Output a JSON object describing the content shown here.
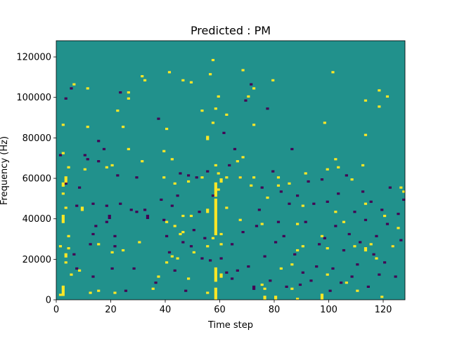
{
  "chart_data": {
    "type": "heatmap",
    "title": "Predicted : PM",
    "xlabel": "Time step",
    "ylabel": "Frequency (Hz)",
    "xlim": [
      0,
      128
    ],
    "ylim": [
      0,
      128000
    ],
    "n_time_steps": 128,
    "n_freq_bins": 128,
    "x_ticks": [
      0,
      20,
      40,
      60,
      80,
      100,
      120
    ],
    "y_ticks": [
      0,
      20000,
      40000,
      60000,
      80000,
      100000,
      120000
    ],
    "x_tick_labels": [
      "0",
      "20",
      "40",
      "60",
      "80",
      "100",
      "120"
    ],
    "y_tick_labels": [
      "0",
      "20000",
      "40000",
      "60000",
      "80000",
      "100000",
      "120000"
    ],
    "colormap": "viridis",
    "colors": {
      "background": "#21918c",
      "low": "#440154",
      "high": "#fde725"
    },
    "note_levels": "0 = dark purple, 0.5 = teal background, 1 = yellow",
    "cells_high": [
      [
        1,
        2,
        1
      ],
      [
        2,
        2,
        4
      ],
      [
        2,
        6,
        1
      ],
      [
        3,
        21,
        2
      ],
      [
        1,
        26,
        1
      ],
      [
        2,
        38,
        4
      ],
      [
        2,
        52,
        1
      ],
      [
        2,
        56,
        2
      ],
      [
        2,
        72,
        1
      ],
      [
        2,
        86,
        1
      ],
      [
        3,
        18,
        1
      ],
      [
        3,
        45,
        1
      ],
      [
        3,
        58,
        3
      ],
      [
        4,
        25,
        1
      ],
      [
        4,
        31,
        1
      ],
      [
        4,
        65,
        1
      ],
      [
        5,
        12,
        1
      ],
      [
        6,
        106,
        1
      ],
      [
        8,
        14,
        1
      ],
      [
        9,
        44,
        2
      ],
      [
        10,
        64,
        1
      ],
      [
        11,
        85,
        1
      ],
      [
        11,
        104,
        1
      ],
      [
        12,
        3,
        1
      ],
      [
        15,
        4,
        1
      ],
      [
        15,
        27,
        1
      ],
      [
        18,
        65,
        1
      ],
      [
        20,
        23,
        1
      ],
      [
        20,
        66,
        1
      ],
      [
        21,
        3,
        1
      ],
      [
        22,
        93,
        1
      ],
      [
        24,
        24,
        1
      ],
      [
        24,
        85,
        1
      ],
      [
        26,
        74,
        1
      ],
      [
        26,
        99,
        1
      ],
      [
        26,
        102,
        1
      ],
      [
        30,
        28,
        1
      ],
      [
        31,
        68,
        1
      ],
      [
        31,
        110,
        1
      ],
      [
        32,
        108,
        1
      ],
      [
        35,
        5,
        1
      ],
      [
        37,
        11,
        1
      ],
      [
        39,
        60,
        1
      ],
      [
        39,
        73,
        1
      ],
      [
        40,
        18,
        1
      ],
      [
        40,
        38,
        1
      ],
      [
        40,
        84,
        1
      ],
      [
        41,
        112,
        1
      ],
      [
        42,
        21,
        1
      ],
      [
        42,
        69,
        1
      ],
      [
        43,
        36,
        1
      ],
      [
        43,
        57,
        1
      ],
      [
        44,
        20,
        1
      ],
      [
        45,
        32,
        1
      ],
      [
        46,
        33,
        1
      ],
      [
        46,
        41,
        1
      ],
      [
        46,
        108,
        1
      ],
      [
        48,
        10,
        1
      ],
      [
        48,
        58,
        1
      ],
      [
        49,
        41,
        1
      ],
      [
        49,
        107,
        1
      ],
      [
        50,
        23,
        1
      ],
      [
        53,
        60,
        1
      ],
      [
        53,
        93,
        1
      ],
      [
        55,
        3,
        1
      ],
      [
        55,
        26,
        1
      ],
      [
        55,
        43,
        2
      ],
      [
        55,
        79,
        2
      ],
      [
        56,
        111,
        1
      ],
      [
        57,
        30,
        1
      ],
      [
        57,
        87,
        1
      ],
      [
        57,
        118,
        1
      ],
      [
        58,
        0,
        6
      ],
      [
        58,
        9,
        7
      ],
      [
        58,
        32,
        18
      ],
      [
        58,
        51,
        7
      ],
      [
        58,
        66,
        1
      ],
      [
        58,
        94,
        1
      ],
      [
        59,
        54,
        1
      ],
      [
        59,
        62,
        1
      ],
      [
        59,
        100,
        1
      ],
      [
        60,
        11,
        2
      ],
      [
        60,
        27,
        1
      ],
      [
        60,
        32,
        1
      ],
      [
        60,
        58,
        2
      ],
      [
        62,
        45,
        1
      ],
      [
        62,
        60,
        1
      ],
      [
        62,
        91,
        1
      ],
      [
        66,
        68,
        1
      ],
      [
        67,
        39,
        1
      ],
      [
        67,
        60,
        1
      ],
      [
        68,
        70,
        1
      ],
      [
        68,
        113,
        1
      ],
      [
        70,
        100,
        1
      ],
      [
        71,
        56,
        1
      ],
      [
        72,
        60,
        1
      ],
      [
        72,
        86,
        1
      ],
      [
        72,
        104,
        1
      ],
      [
        75,
        7,
        1
      ],
      [
        75,
        37,
        1
      ],
      [
        76,
        0,
        2
      ],
      [
        76,
        5,
        1
      ],
      [
        77,
        50,
        1
      ],
      [
        79,
        108,
        1
      ],
      [
        80,
        0,
        2
      ],
      [
        81,
        56,
        1
      ],
      [
        81,
        60,
        1
      ],
      [
        82,
        15,
        1
      ],
      [
        85,
        57,
        1
      ],
      [
        86,
        5,
        1
      ],
      [
        86,
        17,
        1
      ],
      [
        88,
        0,
        1
      ],
      [
        88,
        24,
        1
      ],
      [
        88,
        37,
        1
      ],
      [
        90,
        26,
        1
      ],
      [
        90,
        46,
        1
      ],
      [
        91,
        62,
        1
      ],
      [
        97,
        0,
        3
      ],
      [
        97,
        31,
        1
      ],
      [
        98,
        87,
        1
      ],
      [
        99,
        12,
        1
      ],
      [
        99,
        25,
        1
      ],
      [
        99,
        64,
        1
      ],
      [
        101,
        112,
        1
      ],
      [
        102,
        43,
        1
      ],
      [
        102,
        69,
        1
      ],
      [
        103,
        65,
        1
      ],
      [
        105,
        38,
        1
      ],
      [
        106,
        8,
        1
      ],
      [
        108,
        59,
        1
      ],
      [
        109,
        26,
        1
      ],
      [
        110,
        4,
        1
      ],
      [
        112,
        66,
        1
      ],
      [
        113,
        47,
        1
      ],
      [
        113,
        24,
        2
      ],
      [
        113,
        81,
        1
      ],
      [
        113,
        98,
        1
      ],
      [
        115,
        27,
        1
      ],
      [
        117,
        20,
        1
      ],
      [
        118,
        95,
        1
      ],
      [
        118,
        103,
        1
      ],
      [
        119,
        1,
        1
      ],
      [
        120,
        41,
        1
      ],
      [
        121,
        100,
        1
      ],
      [
        123,
        26,
        1
      ],
      [
        125,
        35,
        1
      ],
      [
        126,
        55,
        1
      ],
      [
        127,
        53,
        1
      ]
    ],
    "cells_low": [
      [
        1,
        71,
        1
      ],
      [
        3,
        57,
        2
      ],
      [
        3,
        99,
        1
      ],
      [
        5,
        104,
        1
      ],
      [
        6,
        22,
        1
      ],
      [
        7,
        15,
        1
      ],
      [
        7,
        46,
        1
      ],
      [
        8,
        55,
        1
      ],
      [
        10,
        71,
        1
      ],
      [
        11,
        69,
        1
      ],
      [
        12,
        27,
        1
      ],
      [
        13,
        32,
        1
      ],
      [
        13,
        47,
        1
      ],
      [
        13,
        11,
        1
      ],
      [
        14,
        36,
        1
      ],
      [
        15,
        78,
        1
      ],
      [
        15,
        68,
        1
      ],
      [
        17,
        74,
        1
      ],
      [
        18,
        46,
        1
      ],
      [
        18,
        38,
        1
      ],
      [
        19,
        40,
        2
      ],
      [
        20,
        15,
        1
      ],
      [
        21,
        31,
        1
      ],
      [
        21,
        26,
        1
      ],
      [
        22,
        61,
        1
      ],
      [
        23,
        47,
        1
      ],
      [
        23,
        102,
        1
      ],
      [
        25,
        4,
        1
      ],
      [
        27,
        44,
        1
      ],
      [
        28,
        15,
        1
      ],
      [
        29,
        43,
        1
      ],
      [
        29,
        60,
        1
      ],
      [
        32,
        44,
        1
      ],
      [
        33,
        40,
        2
      ],
      [
        36,
        8,
        1
      ],
      [
        37,
        89,
        1
      ],
      [
        38,
        49,
        1
      ],
      [
        39,
        39,
        1
      ],
      [
        40,
        31,
        1
      ],
      [
        41,
        23,
        1
      ],
      [
        42,
        46,
        1
      ],
      [
        43,
        14,
        1
      ],
      [
        44,
        51,
        1
      ],
      [
        45,
        62,
        1
      ],
      [
        46,
        28,
        1
      ],
      [
        47,
        4,
        1
      ],
      [
        48,
        61,
        1
      ],
      [
        49,
        26,
        1
      ],
      [
        50,
        34,
        1
      ],
      [
        51,
        60,
        1
      ],
      [
        52,
        43,
        1
      ],
      [
        53,
        20,
        1
      ],
      [
        54,
        30,
        1
      ],
      [
        55,
        63,
        1
      ],
      [
        56,
        19,
        1
      ],
      [
        57,
        51,
        1
      ],
      [
        60,
        20,
        1
      ],
      [
        61,
        82,
        1
      ],
      [
        62,
        13,
        1
      ],
      [
        63,
        66,
        1
      ],
      [
        64,
        10,
        1
      ],
      [
        64,
        27,
        1
      ],
      [
        65,
        74,
        1
      ],
      [
        66,
        14,
        1
      ],
      [
        67,
        60,
        1
      ],
      [
        68,
        33,
        1
      ],
      [
        69,
        98,
        1
      ],
      [
        70,
        16,
        1
      ],
      [
        71,
        106,
        1
      ],
      [
        72,
        5,
        2
      ],
      [
        73,
        36,
        1
      ],
      [
        74,
        44,
        1
      ],
      [
        75,
        55,
        1
      ],
      [
        76,
        21,
        1
      ],
      [
        77,
        94,
        1
      ],
      [
        78,
        9,
        1
      ],
      [
        79,
        63,
        1
      ],
      [
        80,
        28,
        1
      ],
      [
        81,
        38,
        1
      ],
      [
        82,
        53,
        1
      ],
      [
        83,
        31,
        1
      ],
      [
        84,
        6,
        1
      ],
      [
        85,
        47,
        1
      ],
      [
        86,
        74,
        1
      ],
      [
        87,
        22,
        1
      ],
      [
        88,
        51,
        1
      ],
      [
        89,
        7,
        1
      ],
      [
        90,
        13,
        1
      ],
      [
        91,
        38,
        1
      ],
      [
        92,
        58,
        1
      ],
      [
        93,
        9,
        1
      ],
      [
        94,
        47,
        1
      ],
      [
        95,
        16,
        1
      ],
      [
        96,
        27,
        1
      ],
      [
        97,
        59,
        1
      ],
      [
        98,
        30,
        1
      ],
      [
        99,
        48,
        1
      ],
      [
        100,
        4,
        1
      ],
      [
        101,
        15,
        1
      ],
      [
        102,
        36,
        1
      ],
      [
        103,
        52,
        1
      ],
      [
        104,
        8,
        1
      ],
      [
        105,
        24,
        1
      ],
      [
        106,
        61,
        1
      ],
      [
        107,
        32,
        1
      ],
      [
        108,
        11,
        1
      ],
      [
        109,
        43,
        1
      ],
      [
        110,
        17,
        1
      ],
      [
        111,
        28,
        1
      ],
      [
        112,
        53,
        1
      ],
      [
        113,
        39,
        1
      ],
      [
        114,
        6,
        1
      ],
      [
        115,
        48,
        1
      ],
      [
        116,
        22,
        1
      ],
      [
        117,
        31,
        1
      ],
      [
        118,
        12,
        1
      ],
      [
        119,
        44,
        1
      ],
      [
        120,
        18,
        1
      ],
      [
        121,
        37,
        1
      ],
      [
        122,
        55,
        1
      ],
      [
        123,
        26,
        1
      ],
      [
        124,
        11,
        1
      ],
      [
        125,
        42,
        1
      ],
      [
        126,
        29,
        1
      ],
      [
        127,
        49,
        1
      ]
    ]
  }
}
